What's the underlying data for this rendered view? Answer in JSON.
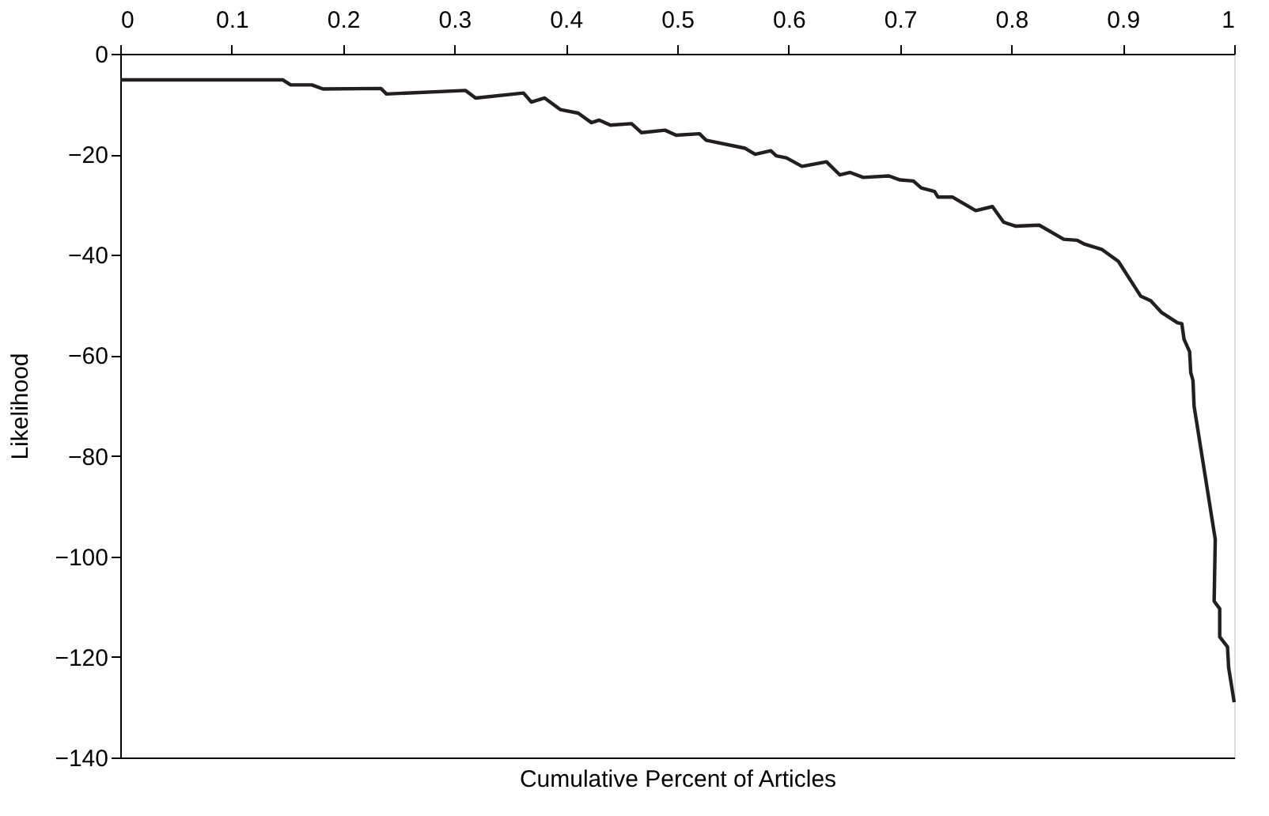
{
  "chart_data": {
    "type": "line",
    "xlabel": "Cumulative Percent of Articles",
    "ylabel": "Likelihood",
    "x": [
      0,
      0.146,
      0.153,
      0.172,
      0.182,
      0.234,
      0.239,
      0.31,
      0.319,
      0.362,
      0.369,
      0.381,
      0.395,
      0.411,
      0.423,
      0.43,
      0.44,
      0.459,
      0.468,
      0.489,
      0.499,
      0.52,
      0.526,
      0.561,
      0.57,
      0.584,
      0.589,
      0.598,
      0.612,
      0.634,
      0.646,
      0.655,
      0.667,
      0.69,
      0.7,
      0.712,
      0.719,
      0.731,
      0.734,
      0.747,
      0.768,
      0.783,
      0.793,
      0.804,
      0.825,
      0.847,
      0.859,
      0.866,
      0.881,
      0.896,
      0.916,
      0.925,
      0.935,
      0.949,
      0.953,
      0.955,
      0.96,
      0.961,
      0.963,
      0.964,
      0.983,
      0.982,
      0.987,
      0.987,
      0.994,
      0.995,
      1.0
    ],
    "series": [
      {
        "color": "#231f20",
        "values": [
          -5.2,
          -5.2,
          -6.2,
          -6.2,
          -7.0,
          -6.9,
          -8.0,
          -7.3,
          -8.8,
          -7.8,
          -9.6,
          -8.8,
          -11.1,
          -11.8,
          -13.7,
          -13.2,
          -14.2,
          -13.9,
          -15.7,
          -15.2,
          -16.2,
          -15.9,
          -17.2,
          -18.8,
          -20,
          -19.3,
          -20.3,
          -20.7,
          -22.4,
          -21.5,
          -24.1,
          -23.6,
          -24.6,
          -24.3,
          -25.1,
          -25.3,
          -26.7,
          -27.4,
          -28.5,
          -28.5,
          -31.2,
          -30.4,
          -33.5,
          -34.3,
          -34.1,
          -36.9,
          -37.1,
          -37.9,
          -38.9,
          -41.3,
          -48.2,
          -49.1,
          -51.5,
          -53.5,
          -53.7,
          -56.8,
          -59.3,
          -63.4,
          -65,
          -70.1,
          -96.6,
          -108.9,
          -110.4,
          -116,
          -118,
          -122.1,
          -129
        ]
      }
    ],
    "xlim": [
      0,
      1
    ],
    "xticks": [
      0,
      0.1,
      0.2,
      0.3,
      0.4,
      0.5,
      0.6,
      0.7,
      0.8,
      0.9,
      1
    ],
    "ylim": [
      -140,
      0
    ],
    "yticks": [
      {
        "value": -140,
        "label": "−140"
      },
      {
        "value": -120,
        "label": "−120"
      },
      {
        "value": -100,
        "label": "−100"
      },
      {
        "value": -80,
        "label": "−80"
      },
      {
        "value": -60,
        "label": "−60"
      },
      {
        "value": -40,
        "label": "−40"
      },
      {
        "value": -20,
        "label": "−20"
      },
      0
    ],
    "grid": false,
    "legend": false,
    "marker": "none",
    "line_style": "solid"
  }
}
